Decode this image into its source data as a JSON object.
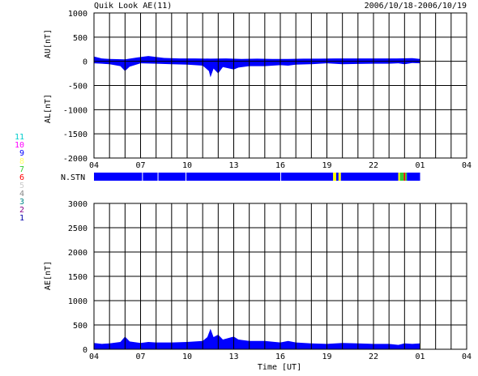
{
  "header": {
    "title": "Quik Look AE(11)",
    "date_range": "2006/10/18-2006/10/19"
  },
  "colors": {
    "axis": "#000000",
    "data_fill": "#0000ff",
    "gap_yellow": "#ffff00",
    "green": "#33cc33",
    "red": "#ff0000",
    "white_gap": "#ffffff"
  },
  "station_legend": {
    "label": "N.STN",
    "items": [
      {
        "label": "11",
        "color": "#00cccc"
      },
      {
        "label": "10",
        "color": "#ff00ff"
      },
      {
        "label": "9",
        "color": "#0000ff"
      },
      {
        "label": "8",
        "color": "#ffff66"
      },
      {
        "label": "7",
        "color": "#33cc33"
      },
      {
        "label": "6",
        "color": "#ff0000"
      },
      {
        "label": "5",
        "color": "#cccccc"
      },
      {
        "label": "4",
        "color": "#888888"
      },
      {
        "label": "3",
        "color": "#008888"
      },
      {
        "label": "2",
        "color": "#880088"
      },
      {
        "label": "1",
        "color": "#0000aa"
      }
    ]
  },
  "chart_data": [
    {
      "type": "area",
      "title": "",
      "ylabel_upper": "AU[nT]",
      "ylabel_lower": "AL[nT]",
      "xlim_hours": [
        4,
        28
      ],
      "ylim": [
        -2000,
        1000
      ],
      "y_ticks": [
        1000,
        500,
        0,
        -500,
        -1000,
        -1500,
        -2000
      ],
      "x_tick_labels": [
        "04",
        "07",
        "10",
        "13",
        "16",
        "19",
        "22",
        "01",
        "04"
      ],
      "grid": true,
      "upper_envelope": [
        [
          4.0,
          100
        ],
        [
          4.5,
          60
        ],
        [
          5.0,
          50
        ],
        [
          6.0,
          40
        ],
        [
          6.8,
          80
        ],
        [
          7.5,
          110
        ],
        [
          8.5,
          70
        ],
        [
          9.5,
          60
        ],
        [
          10.5,
          60
        ],
        [
          11.5,
          55
        ],
        [
          12.5,
          60
        ],
        [
          13.5,
          50
        ],
        [
          14.5,
          55
        ],
        [
          15.5,
          50
        ],
        [
          16.5,
          50
        ],
        [
          17.5,
          55
        ],
        [
          18.5,
          55
        ],
        [
          19.5,
          60
        ],
        [
          20.5,
          60
        ],
        [
          21.5,
          60
        ],
        [
          22.5,
          60
        ],
        [
          23.5,
          60
        ],
        [
          24.5,
          65
        ],
        [
          25.0,
          50
        ]
      ],
      "lower_envelope": [
        [
          4.0,
          -40
        ],
        [
          5.0,
          -60
        ],
        [
          5.7,
          -100
        ],
        [
          6.0,
          -200
        ],
        [
          6.3,
          -110
        ],
        [
          7.0,
          -40
        ],
        [
          8.0,
          -50
        ],
        [
          9.0,
          -60
        ],
        [
          10.0,
          -70
        ],
        [
          11.0,
          -90
        ],
        [
          11.4,
          -200
        ],
        [
          11.5,
          -330
        ],
        [
          11.7,
          -150
        ],
        [
          12.0,
          -250
        ],
        [
          12.3,
          -120
        ],
        [
          13.0,
          -170
        ],
        [
          13.3,
          -130
        ],
        [
          14.0,
          -100
        ],
        [
          15.0,
          -100
        ],
        [
          16.0,
          -80
        ],
        [
          16.5,
          -90
        ],
        [
          17.0,
          -70
        ],
        [
          18.0,
          -60
        ],
        [
          19.0,
          -40
        ],
        [
          20.0,
          -60
        ],
        [
          21.0,
          -55
        ],
        [
          22.0,
          -50
        ],
        [
          23.0,
          -50
        ],
        [
          23.6,
          -40
        ],
        [
          24.0,
          -60
        ],
        [
          24.5,
          -35
        ],
        [
          25.0,
          -40
        ]
      ]
    },
    {
      "type": "bar",
      "ylabel": "N.STN",
      "xlim_hours": [
        4,
        25
      ],
      "segments": [
        {
          "from": 4.0,
          "to": 7.1,
          "color": "#0000ff"
        },
        {
          "from": 7.1,
          "to": 7.15,
          "color": "#ffffff"
        },
        {
          "from": 7.15,
          "to": 8.1,
          "color": "#0000ff"
        },
        {
          "from": 8.1,
          "to": 8.15,
          "color": "#ffffff"
        },
        {
          "from": 8.15,
          "to": 9.9,
          "color": "#0000ff"
        },
        {
          "from": 9.9,
          "to": 9.95,
          "color": "#ffffff"
        },
        {
          "from": 9.95,
          "to": 16.0,
          "color": "#0000ff"
        },
        {
          "from": 16.0,
          "to": 16.05,
          "color": "#ffffff"
        },
        {
          "from": 16.05,
          "to": 19.4,
          "color": "#0000ff"
        },
        {
          "from": 19.4,
          "to": 19.6,
          "color": "#ffff00"
        },
        {
          "from": 19.6,
          "to": 19.75,
          "color": "#0000ff"
        },
        {
          "from": 19.75,
          "to": 19.9,
          "color": "#ffff00"
        },
        {
          "from": 19.9,
          "to": 23.6,
          "color": "#0000ff"
        },
        {
          "from": 23.6,
          "to": 23.7,
          "color": "#ffff00"
        },
        {
          "from": 23.7,
          "to": 23.95,
          "color": "#33cc33"
        },
        {
          "from": 23.95,
          "to": 24.05,
          "color": "#ff0000"
        },
        {
          "from": 24.05,
          "to": 24.15,
          "color": "#33cc33"
        },
        {
          "from": 24.15,
          "to": 25.0,
          "color": "#0000ff"
        }
      ]
    },
    {
      "type": "area",
      "title": "",
      "ylabel": "AE[nT]",
      "xlabel": "Time [UT]",
      "xlim_hours": [
        4,
        28
      ],
      "ylim": [
        0,
        3000
      ],
      "y_ticks": [
        3000,
        2500,
        2000,
        1500,
        1000,
        500,
        0
      ],
      "x_tick_labels": [
        "04",
        "07",
        "10",
        "13",
        "16",
        "19",
        "22",
        "01",
        "04"
      ],
      "grid": true,
      "values": [
        [
          4.0,
          130
        ],
        [
          4.5,
          110
        ],
        [
          5.0,
          120
        ],
        [
          5.7,
          150
        ],
        [
          6.0,
          260
        ],
        [
          6.3,
          160
        ],
        [
          7.0,
          130
        ],
        [
          7.5,
          150
        ],
        [
          8.0,
          140
        ],
        [
          9.0,
          140
        ],
        [
          10.0,
          150
        ],
        [
          11.0,
          170
        ],
        [
          11.3,
          250
        ],
        [
          11.5,
          420
        ],
        [
          11.7,
          250
        ],
        [
          12.0,
          300
        ],
        [
          12.3,
          200
        ],
        [
          13.0,
          260
        ],
        [
          13.3,
          200
        ],
        [
          14.0,
          170
        ],
        [
          15.0,
          170
        ],
        [
          16.0,
          140
        ],
        [
          16.5,
          170
        ],
        [
          17.0,
          140
        ],
        [
          18.0,
          120
        ],
        [
          19.0,
          110
        ],
        [
          20.0,
          130
        ],
        [
          21.0,
          120
        ],
        [
          22.0,
          110
        ],
        [
          23.0,
          110
        ],
        [
          23.6,
          90
        ],
        [
          24.0,
          120
        ],
        [
          24.5,
          110
        ],
        [
          25.0,
          120
        ]
      ]
    }
  ]
}
